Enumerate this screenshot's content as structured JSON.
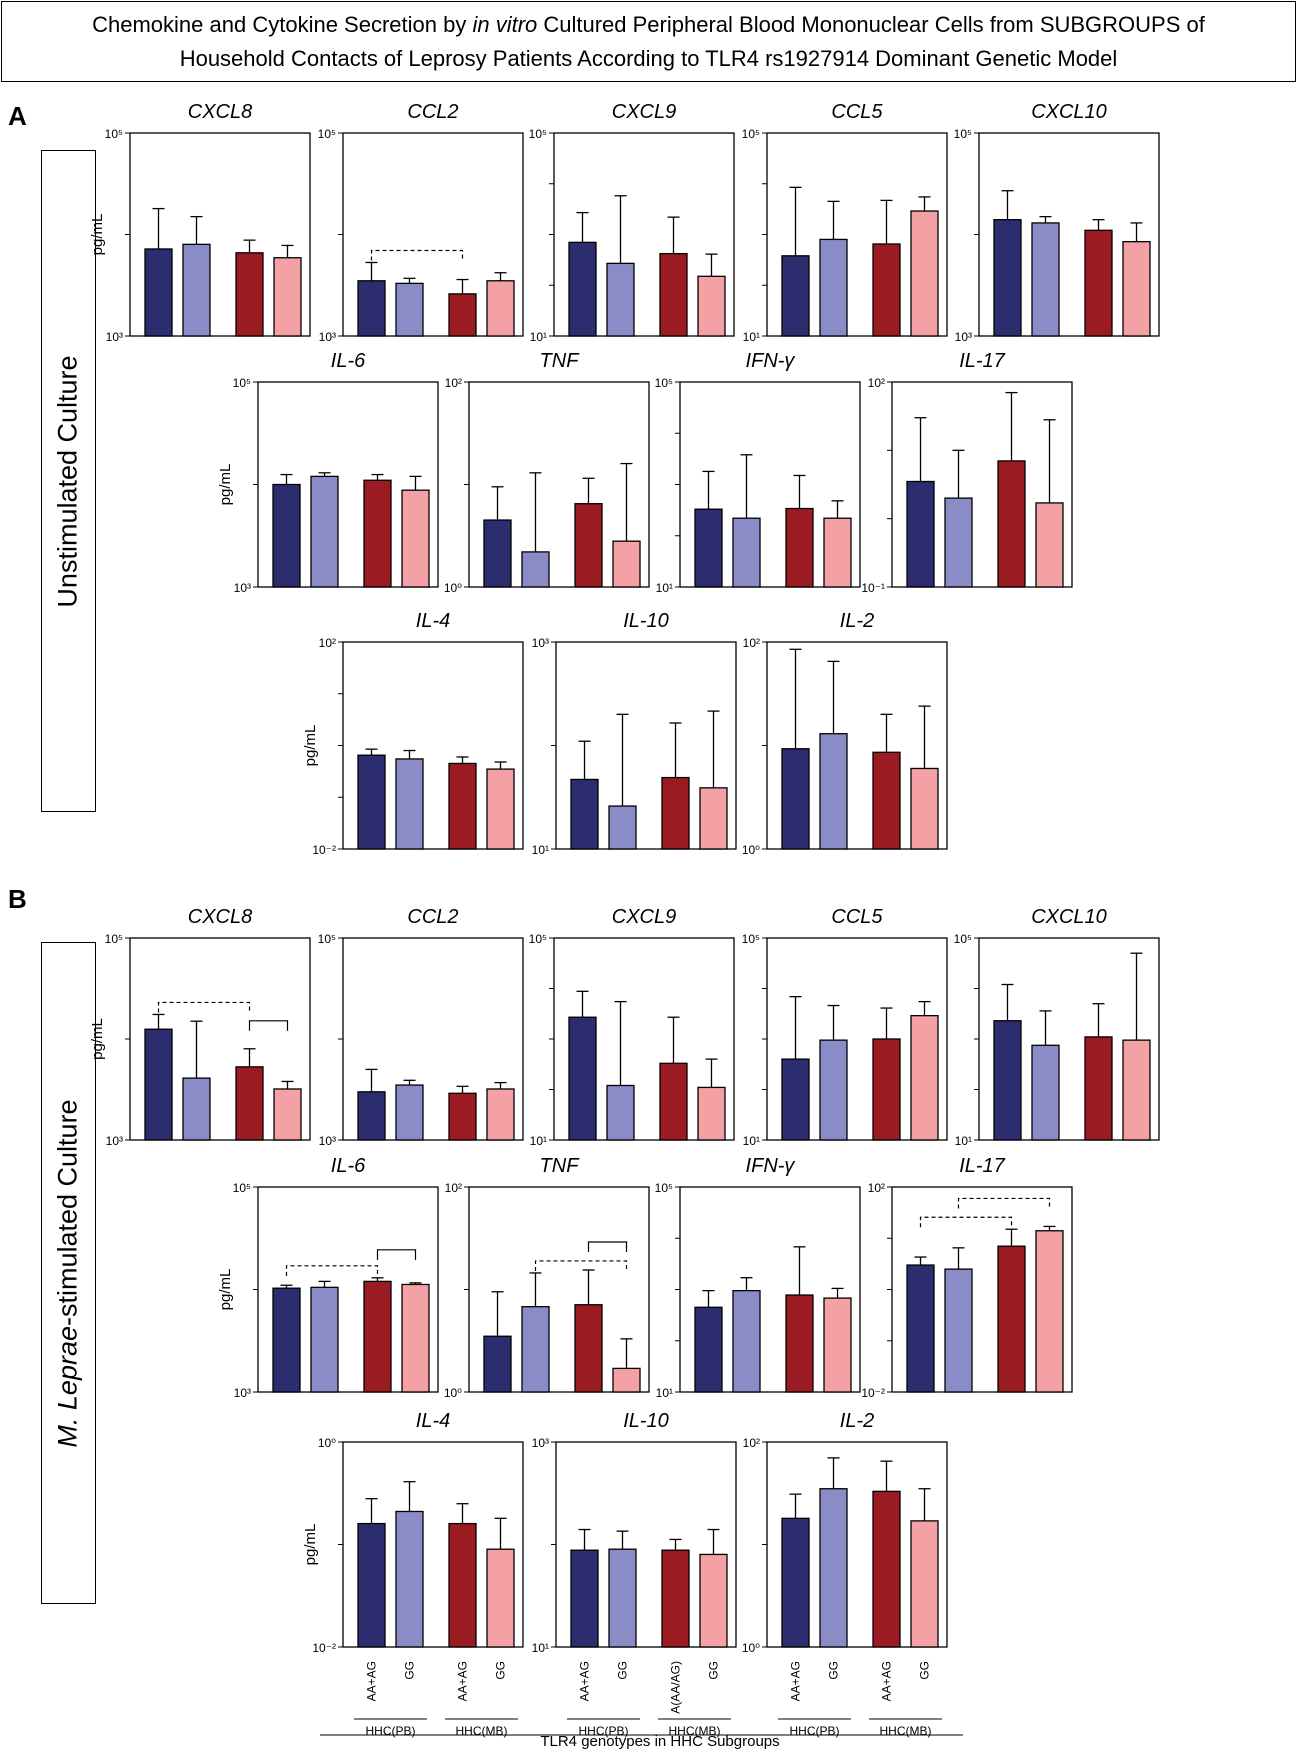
{
  "figure_title": {
    "line1_before": "Chemokine and Cytokine Secretion by ",
    "line1_italic": "in vitro",
    "line1_after": " Cultured Peripheral Blood Mononuclear Cells from SUBGROUPS of",
    "line2": "Household Contacts of Leprosy Patients According to TLR4 rs1927914 Dominant Genetic Model"
  },
  "panel_a": {
    "letter": "A",
    "side_label": "Unstimulated Culture"
  },
  "panel_b": {
    "letter": "B",
    "side_label_italic": "M. Leprae",
    "side_label_rest": "-stimulated Culture"
  },
  "y_axis_label": "pg/mL",
  "colors": {
    "AA+AG_PB": "#2b2d6e",
    "GG_PB": "#8a8cc8",
    "AA+AG_MB": "#9b1b22",
    "GG_MB": "#f3a1a4"
  },
  "legend": {
    "genotype_labels": [
      "AA+AG",
      "GG",
      "AA+AG",
      "GG"
    ],
    "genotype_labels_il10": [
      "AA+AG",
      "GG",
      "A(AA/AG)",
      "GG"
    ],
    "subgroups": [
      "HHC(PB)",
      "HHC(MB)"
    ],
    "axis_title": "TLR4 genotypes in HHC Subgroups"
  },
  "chart_data": [
    {
      "panel": "A",
      "title": "CXCL8",
      "type": "bar",
      "scale": "log",
      "ylim_exp": [
        3,
        5
      ],
      "ylabel": "pg/mL",
      "values": [
        7200,
        8000,
        6600,
        5900
      ],
      "errors_upper": [
        18000,
        15000,
        8800,
        7800
      ],
      "brackets": []
    },
    {
      "panel": "A",
      "title": "CCL2",
      "type": "bar",
      "scale": "log",
      "ylim_exp": [
        3,
        5
      ],
      "ylabel": "",
      "values": [
        3500,
        3300,
        2600,
        3500
      ],
      "errors_upper": [
        5300,
        3700,
        3600,
        4200
      ],
      "brackets": [
        {
          "from": 0,
          "to": 2,
          "style": "dashed"
        }
      ]
    },
    {
      "panel": "A",
      "title": "CXCL9",
      "type": "bar",
      "scale": "log",
      "ylim_exp": [
        1,
        5
      ],
      "ylabel": "",
      "values": [
        700,
        270,
        420,
        150
      ],
      "errors_upper": [
        2700,
        5800,
        2200,
        410
      ],
      "brackets": []
    },
    {
      "panel": "A",
      "title": "CCL5",
      "type": "bar",
      "scale": "log",
      "ylim_exp": [
        1,
        5
      ],
      "ylabel": "",
      "values": [
        380,
        800,
        650,
        2900
      ],
      "errors_upper": [
        8500,
        4500,
        4700,
        5500
      ],
      "brackets": []
    },
    {
      "panel": "A",
      "title": "CXCL10",
      "type": "bar",
      "scale": "log",
      "ylim_exp": [
        3,
        5
      ],
      "ylabel": "",
      "values": [
        14000,
        13000,
        11000,
        8500
      ],
      "errors_upper": [
        27000,
        15000,
        14000,
        13000
      ],
      "brackets": []
    },
    {
      "panel": "A",
      "title": "IL-6",
      "type": "bar",
      "scale": "log",
      "ylim_exp": [
        3,
        5
      ],
      "ylabel": "pg/mL",
      "values": [
        10000,
        12000,
        11000,
        8800
      ],
      "errors_upper": [
        12500,
        13000,
        12500,
        12000
      ],
      "brackets": []
    },
    {
      "panel": "A",
      "title": "TNF",
      "type": "bar",
      "scale": "log",
      "ylim_exp": [
        0,
        2
      ],
      "ylabel": "",
      "values": [
        4.5,
        2.2,
        6.5,
        2.8
      ],
      "errors_upper": [
        9.5,
        13,
        11.5,
        16
      ],
      "brackets": []
    },
    {
      "panel": "A",
      "title": "IFN-γ",
      "type": "bar",
      "scale": "log",
      "ylim_exp": [
        1,
        5
      ],
      "ylabel": "",
      "values": [
        330,
        220,
        340,
        220
      ],
      "errors_upper": [
        1800,
        3800,
        1500,
        480
      ],
      "brackets": []
    },
    {
      "panel": "A",
      "title": "IL-17",
      "type": "bar",
      "scale": "log",
      "ylim_exp": [
        -1,
        2
      ],
      "ylabel": "",
      "values": [
        3.5,
        2.0,
        7.0,
        1.7
      ],
      "errors_upper": [
        30,
        10,
        70,
        28
      ],
      "brackets": []
    },
    {
      "panel": "A",
      "title": "IL-4",
      "type": "bar",
      "scale": "log",
      "ylim_exp": [
        -2,
        2
      ],
      "ylabel": "pg/mL",
      "values": [
        0.65,
        0.55,
        0.45,
        0.35
      ],
      "errors_upper": [
        0.85,
        0.8,
        0.6,
        0.48
      ],
      "brackets": []
    },
    {
      "panel": "A",
      "title": "IL-10",
      "type": "bar",
      "scale": "log",
      "ylim_exp": [
        1,
        3
      ],
      "ylabel": "",
      "values": [
        47,
        26,
        49,
        39
      ],
      "errors_upper": [
        110,
        200,
        165,
        215
      ],
      "brackets": []
    },
    {
      "panel": "A",
      "title": "IL-2",
      "type": "bar",
      "scale": "log",
      "ylim_exp": [
        0,
        2
      ],
      "ylabel": "",
      "values": [
        9.3,
        13,
        8.6,
        6
      ],
      "errors_upper": [
        85,
        65,
        20,
        24
      ],
      "brackets": []
    },
    {
      "panel": "B",
      "title": "CXCL8",
      "type": "bar",
      "scale": "log",
      "ylim_exp": [
        3,
        5
      ],
      "ylabel": "pg/mL",
      "values": [
        12500,
        4100,
        5300,
        3200
      ],
      "errors_upper": [
        17500,
        15000,
        8000,
        3800
      ],
      "brackets": [
        {
          "from": 0,
          "to": 2,
          "style": "dashed"
        },
        {
          "from": 2,
          "to": 3,
          "style": "solid"
        }
      ]
    },
    {
      "panel": "B",
      "title": "CCL2",
      "type": "bar",
      "scale": "log",
      "ylim_exp": [
        3,
        5
      ],
      "ylabel": "",
      "values": [
        3000,
        3500,
        2900,
        3200
      ],
      "errors_upper": [
        5000,
        3900,
        3400,
        3700
      ],
      "brackets": []
    },
    {
      "panel": "B",
      "title": "CXCL9",
      "type": "bar",
      "scale": "log",
      "ylim_exp": [
        1,
        5
      ],
      "ylabel": "",
      "values": [
        2700,
        120,
        330,
        110
      ],
      "errors_upper": [
        8800,
        5500,
        2700,
        400
      ],
      "brackets": []
    },
    {
      "panel": "B",
      "title": "CCL5",
      "type": "bar",
      "scale": "log",
      "ylim_exp": [
        1,
        5
      ],
      "ylabel": "",
      "values": [
        400,
        950,
        1000,
        2900
      ],
      "errors_upper": [
        6900,
        4600,
        4100,
        5500
      ],
      "brackets": []
    },
    {
      "panel": "B",
      "title": "CXCL10",
      "type": "bar",
      "scale": "log",
      "ylim_exp": [
        1,
        5
      ],
      "ylabel": "",
      "values": [
        2300,
        750,
        1100,
        950
      ],
      "errors_upper": [
        12000,
        3600,
        5000,
        50000
      ],
      "brackets": []
    },
    {
      "panel": "B",
      "title": "IL-6",
      "type": "bar",
      "scale": "log",
      "ylim_exp": [
        3,
        5
      ],
      "ylabel": "pg/mL",
      "values": [
        10300,
        10500,
        12000,
        11200
      ],
      "errors_upper": [
        11000,
        12000,
        13000,
        11600
      ],
      "brackets": [
        {
          "from": 0,
          "to": 2,
          "style": "dashed"
        },
        {
          "from": 2,
          "to": 3,
          "style": "solid"
        }
      ]
    },
    {
      "panel": "B",
      "title": "TNF",
      "type": "bar",
      "scale": "log",
      "ylim_exp": [
        0,
        2
      ],
      "ylabel": "",
      "values": [
        3.5,
        6.8,
        7.1,
        1.7
      ],
      "errors_upper": [
        9.5,
        14.5,
        15.5,
        3.3
      ],
      "brackets": [
        {
          "from": 1,
          "to": 3,
          "style": "dashed"
        },
        {
          "from": 2,
          "to": 3,
          "style": "solid"
        }
      ]
    },
    {
      "panel": "B",
      "title": "IFN-γ",
      "type": "bar",
      "scale": "log",
      "ylim_exp": [
        1,
        5
      ],
      "ylabel": "",
      "values": [
        450,
        950,
        780,
        680
      ],
      "errors_upper": [
        950,
        1700,
        6800,
        1050
      ],
      "brackets": []
    },
    {
      "panel": "B",
      "title": "IL-17",
      "type": "bar",
      "scale": "log",
      "ylim_exp": [
        -2,
        2
      ],
      "ylabel": "",
      "values": [
        3.0,
        2.5,
        7.0,
        14
      ],
      "errors_upper": [
        4.3,
        6.5,
        15,
        17
      ],
      "brackets": [
        {
          "from": 0,
          "to": 2,
          "style": "dashed"
        },
        {
          "from": 1,
          "to": 3,
          "style": "dashed"
        }
      ]
    },
    {
      "panel": "B",
      "title": "IL-4",
      "type": "bar",
      "scale": "log",
      "ylim_exp": [
        -2,
        0
      ],
      "ylabel": "pg/mL",
      "values": [
        0.16,
        0.21,
        0.16,
        0.09
      ],
      "errors_upper": [
        0.28,
        0.41,
        0.25,
        0.18
      ],
      "brackets": []
    },
    {
      "panel": "B",
      "title": "IL-10",
      "type": "bar",
      "scale": "log",
      "ylim_exp": [
        1,
        3
      ],
      "ylabel": "",
      "values": [
        88,
        90,
        88,
        80
      ],
      "errors_upper": [
        140,
        135,
        112,
        140
      ],
      "brackets": []
    },
    {
      "panel": "B",
      "title": "IL-2",
      "type": "bar",
      "scale": "log",
      "ylim_exp": [
        0,
        2
      ],
      "ylabel": "",
      "values": [
        18,
        35,
        33,
        17
      ],
      "errors_upper": [
        31,
        70,
        65,
        35
      ],
      "brackets": []
    }
  ]
}
